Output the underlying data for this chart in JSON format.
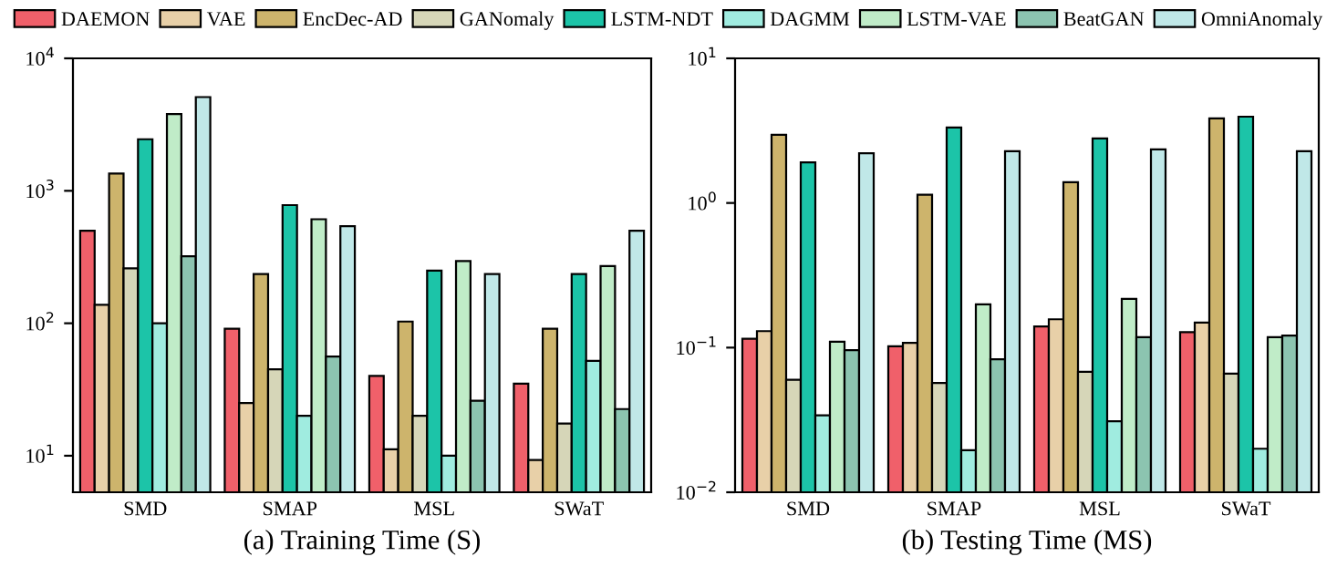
{
  "chart_data": [
    {
      "type": "bar",
      "xlabel": "(a) Training Time (S)",
      "categories": [
        "SMD",
        "SMAP",
        "MSL",
        "SWaT"
      ],
      "log": "y",
      "ylim": [
        5.3,
        10000
      ],
      "yticks": [
        {
          "value": 10,
          "label": "10$^{1}$"
        },
        {
          "value": 100,
          "label": "10$^{2}$"
        },
        {
          "value": 1000,
          "label": "10$^{3}$"
        },
        {
          "value": 10000,
          "label": "10$^{4}$"
        }
      ],
      "legend": "top",
      "grid": false,
      "series": [
        {
          "name": "DAEMON",
          "color": "#f0606a",
          "values": [
            500,
            91,
            40,
            35
          ]
        },
        {
          "name": "VAE",
          "color": "#e8d0a8",
          "values": [
            138,
            25,
            11.2,
            9.3
          ]
        },
        {
          "name": "EncDec-AD",
          "color": "#cdb46c",
          "values": [
            1350,
            235,
            103,
            91
          ]
        },
        {
          "name": "GANomaly",
          "color": "#d6d6b8",
          "values": [
            260,
            45,
            20,
            17.5
          ]
        },
        {
          "name": "LSTM-NDT",
          "color": "#1cc4a8",
          "values": [
            2450,
            780,
            250,
            235
          ]
        },
        {
          "name": "DAGMM",
          "color": "#a0ece0",
          "values": [
            100,
            20,
            10,
            52
          ]
        },
        {
          "name": "LSTM-VAE",
          "color": "#c0ecc8",
          "values": [
            3800,
            610,
            295,
            270
          ]
        },
        {
          "name": "BeatGAN",
          "color": "#8cc4b0",
          "values": [
            320,
            56,
            26,
            22.5
          ]
        },
        {
          "name": "OmniAnomaly",
          "color": "#c0e8e8",
          "values": [
            5100,
            540,
            235,
            500
          ]
        }
      ]
    },
    {
      "type": "bar",
      "xlabel": "(b) Testing Time (MS)",
      "categories": [
        "SMD",
        "SMAP",
        "MSL",
        "SWaT"
      ],
      "log": "y",
      "ylim": [
        0.01,
        10
      ],
      "yticks": [
        {
          "value": 0.01,
          "label": "10$^{−2}$"
        },
        {
          "value": 0.1,
          "label": "10$^{−1}$"
        },
        {
          "value": 1,
          "label": "10$^{0}$"
        },
        {
          "value": 10,
          "label": "10$^{1}$"
        }
      ],
      "grid": false,
      "series": [
        {
          "color": "#f0606a",
          "values": [
            0.115,
            0.102,
            0.14,
            0.128
          ]
        },
        {
          "color": "#e8d0a8",
          "values": [
            0.13,
            0.108,
            0.157,
            0.149
          ]
        },
        {
          "color": "#cdb46c",
          "values": [
            2.96,
            1.14,
            1.39,
            3.84
          ]
        },
        {
          "color": "#d6d6b8",
          "values": [
            0.06,
            0.057,
            0.068,
            0.066
          ]
        },
        {
          "color": "#1cc4a8",
          "values": [
            1.91,
            3.32,
            2.79,
            3.95
          ]
        },
        {
          "color": "#a0ece0",
          "values": [
            0.034,
            0.0195,
            0.031,
            0.02
          ]
        },
        {
          "color": "#c0ecc8",
          "values": [
            0.11,
            0.199,
            0.217,
            0.118
          ]
        },
        {
          "color": "#8cc4b0",
          "values": [
            0.096,
            0.083,
            0.118,
            0.121
          ]
        },
        {
          "color": "#c0e8e8",
          "values": [
            2.21,
            2.28,
            2.35,
            2.28
          ]
        }
      ]
    }
  ]
}
